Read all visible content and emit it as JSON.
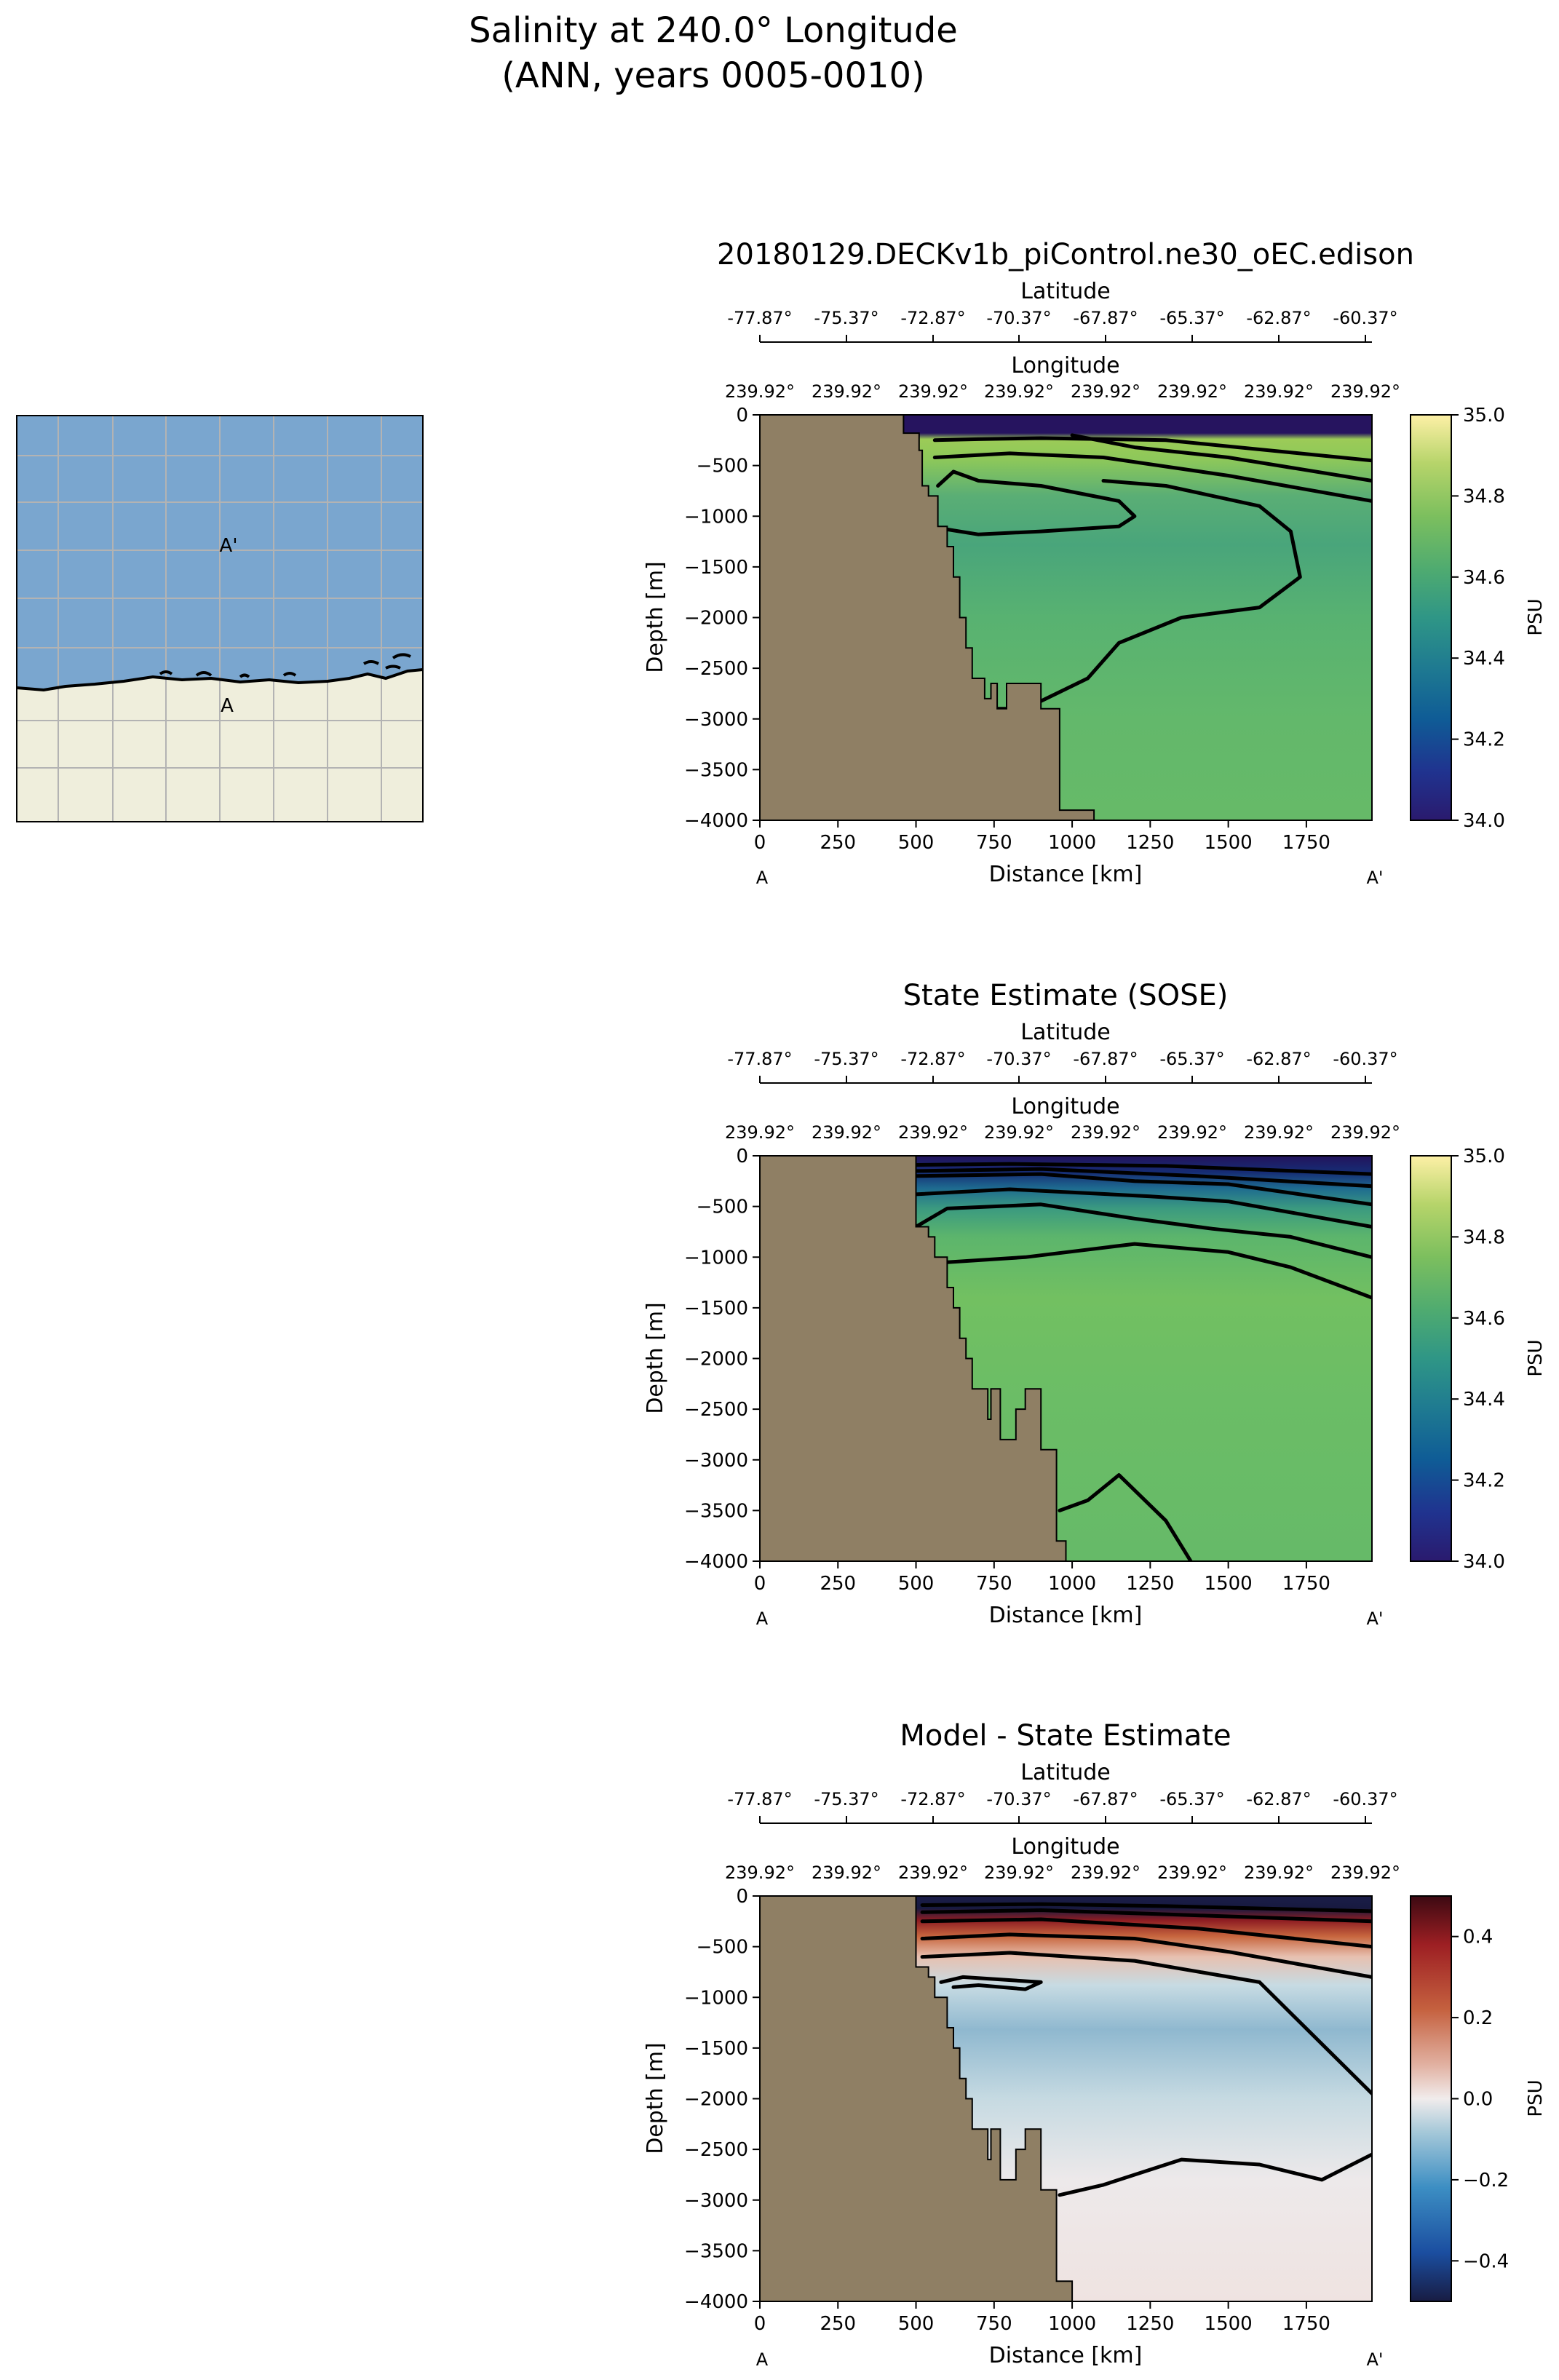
{
  "figure": {
    "title_line1": "Salinity at 240.0° Longitude",
    "title_line2": "(ANN, years 0005-0010)"
  },
  "inset_map": {
    "point_a": "A",
    "point_a_prime": "A'",
    "colors": {
      "ocean": "#7aa6cf",
      "land": "#efeedc",
      "grid": "#b3b3b3"
    }
  },
  "chart_data": [
    {
      "type": "heatmap",
      "title": "20180129.DECKv1b_piControl.ne30_oEC.edison",
      "xlabel": "Distance [km]",
      "ylabel": "Depth [m]",
      "xlim": [
        0,
        1960
      ],
      "ylim": [
        -4000,
        0
      ],
      "x_ticks": [
        0,
        250,
        500,
        750,
        1000,
        1250,
        1500,
        1750
      ],
      "y_ticks": [
        0,
        -500,
        -1000,
        -1500,
        -2000,
        -2500,
        -3000,
        -3500,
        -4000
      ],
      "x_tick_labels": [
        "0",
        "250",
        "500",
        "750",
        "1000",
        "1250",
        "1500",
        "1750"
      ],
      "y_tick_labels": [
        "0",
        "−500",
        "−1000",
        "−1500",
        "−2000",
        "−2500",
        "−3000",
        "−3500",
        "−4000"
      ],
      "latitude_axis": {
        "label": "Latitude",
        "ticks": [
          "-77.87°",
          "-75.37°",
          "-72.87°",
          "-70.37°",
          "-67.87°",
          "-65.37°",
          "-62.87°",
          "-60.37°"
        ]
      },
      "longitude_axis": {
        "label": "Longitude",
        "ticks": [
          "239.92°",
          "239.92°",
          "239.92°",
          "239.92°",
          "239.92°",
          "239.92°",
          "239.92°",
          "239.92°"
        ]
      },
      "section_start": "A",
      "section_end": "A'",
      "colorbar": {
        "label": "PSU",
        "range": [
          34.0,
          35.0
        ],
        "ticks": [
          "34.0",
          "34.2",
          "34.4",
          "34.6",
          "34.8",
          "35.0"
        ],
        "colormap": "haline"
      },
      "bathymetry": [
        [
          0,
          0
        ],
        [
          460,
          0
        ],
        [
          460,
          -180
        ],
        [
          510,
          -180
        ],
        [
          510,
          -350
        ],
        [
          520,
          -350
        ],
        [
          520,
          -700
        ],
        [
          540,
          -700
        ],
        [
          540,
          -800
        ],
        [
          570,
          -800
        ],
        [
          570,
          -1100
        ],
        [
          600,
          -1100
        ],
        [
          600,
          -1300
        ],
        [
          620,
          -1300
        ],
        [
          620,
          -1600
        ],
        [
          640,
          -1600
        ],
        [
          640,
          -2000
        ],
        [
          660,
          -2000
        ],
        [
          660,
          -2300
        ],
        [
          680,
          -2300
        ],
        [
          680,
          -2600
        ],
        [
          720,
          -2600
        ],
        [
          720,
          -2800
        ],
        [
          740,
          -2800
        ],
        [
          740,
          -2650
        ],
        [
          760,
          -2650
        ],
        [
          760,
          -2900
        ],
        [
          790,
          -2900
        ],
        [
          790,
          -2650
        ],
        [
          900,
          -2650
        ],
        [
          900,
          -2900
        ],
        [
          960,
          -2900
        ],
        [
          960,
          -3900
        ],
        [
          1070,
          -3900
        ],
        [
          1070,
          -4000
        ],
        [
          0,
          -4000
        ]
      ],
      "field_notes": "Fresh surface layer 34.0-34.1 above ~250 m; green 34.75 near surface; teal 34.65 core between 600 and 1700 m; 34.7 at depth",
      "contours": [
        {
          "level": 34.7,
          "points": [
            [
              560,
              -250
            ],
            [
              700,
              -240
            ],
            [
              900,
              -230
            ],
            [
              1300,
              -250
            ],
            [
              1960,
              -450
            ]
          ]
        },
        {
          "level": 34.7,
          "points": [
            [
              1000,
              -200
            ],
            [
              1200,
              -320
            ],
            [
              1500,
              -420
            ],
            [
              1960,
              -650
            ]
          ]
        },
        {
          "level": 34.7,
          "points": [
            [
              560,
              -420
            ],
            [
              800,
              -380
            ],
            [
              1100,
              -420
            ],
            [
              1500,
              -600
            ],
            [
              1960,
              -850
            ]
          ]
        },
        {
          "level": 34.65,
          "points": [
            [
              570,
              -700
            ],
            [
              620,
              -560
            ],
            [
              700,
              -650
            ],
            [
              900,
              -700
            ],
            [
              1150,
              -850
            ],
            [
              1200,
              -1000
            ],
            [
              1150,
              -1100
            ],
            [
              900,
              -1150
            ],
            [
              700,
              -1180
            ],
            [
              600,
              -1130
            ]
          ]
        },
        {
          "level": 34.66,
          "points": [
            [
              680,
              -2650
            ],
            [
              740,
              -2900
            ],
            [
              850,
              -2900
            ],
            [
              1050,
              -2600
            ],
            [
              1150,
              -2250
            ],
            [
              1350,
              -2000
            ],
            [
              1600,
              -1900
            ],
            [
              1730,
              -1600
            ],
            [
              1700,
              -1150
            ],
            [
              1600,
              -900
            ],
            [
              1300,
              -700
            ],
            [
              1100,
              -650
            ]
          ]
        }
      ]
    },
    {
      "type": "heatmap",
      "title": "State Estimate (SOSE)",
      "xlabel": "Distance [km]",
      "ylabel": "Depth [m]",
      "xlim": [
        0,
        1960
      ],
      "ylim": [
        -4000,
        0
      ],
      "x_ticks": [
        0,
        250,
        500,
        750,
        1000,
        1250,
        1500,
        1750
      ],
      "y_ticks": [
        0,
        -500,
        -1000,
        -1500,
        -2000,
        -2500,
        -3000,
        -3500,
        -4000
      ],
      "x_tick_labels": [
        "0",
        "250",
        "500",
        "750",
        "1000",
        "1250",
        "1500",
        "1750"
      ],
      "y_tick_labels": [
        "0",
        "−500",
        "−1000",
        "−1500",
        "−2000",
        "−2500",
        "−3000",
        "−3500",
        "−4000"
      ],
      "latitude_axis": {
        "label": "Latitude",
        "ticks": [
          "-77.87°",
          "-75.37°",
          "-72.87°",
          "-70.37°",
          "-67.87°",
          "-65.37°",
          "-62.87°",
          "-60.37°"
        ]
      },
      "longitude_axis": {
        "label": "Longitude",
        "ticks": [
          "239.92°",
          "239.92°",
          "239.92°",
          "239.92°",
          "239.92°",
          "239.92°",
          "239.92°",
          "239.92°"
        ]
      },
      "section_start": "A",
      "section_end": "A'",
      "colorbar": {
        "label": "PSU",
        "range": [
          34.0,
          35.0
        ],
        "ticks": [
          "34.0",
          "34.2",
          "34.4",
          "34.6",
          "34.8",
          "35.0"
        ],
        "colormap": "haline"
      },
      "bathymetry": [
        [
          0,
          0
        ],
        [
          500,
          0
        ],
        [
          500,
          -700
        ],
        [
          540,
          -700
        ],
        [
          540,
          -800
        ],
        [
          560,
          -800
        ],
        [
          560,
          -1000
        ],
        [
          600,
          -1000
        ],
        [
          600,
          -1300
        ],
        [
          620,
          -1300
        ],
        [
          620,
          -1500
        ],
        [
          640,
          -1500
        ],
        [
          640,
          -1800
        ],
        [
          660,
          -1800
        ],
        [
          660,
          -2000
        ],
        [
          680,
          -2000
        ],
        [
          680,
          -2300
        ],
        [
          730,
          -2300
        ],
        [
          730,
          -2600
        ],
        [
          740,
          -2600
        ],
        [
          740,
          -2300
        ],
        [
          770,
          -2300
        ],
        [
          770,
          -2800
        ],
        [
          820,
          -2800
        ],
        [
          820,
          -2500
        ],
        [
          850,
          -2500
        ],
        [
          850,
          -2300
        ],
        [
          900,
          -2300
        ],
        [
          900,
          -2900
        ],
        [
          950,
          -2900
        ],
        [
          950,
          -3800
        ],
        [
          980,
          -3800
        ],
        [
          980,
          -4000
        ],
        [
          0,
          -4000
        ]
      ],
      "contours": [
        {
          "level": 34.2,
          "points": [
            [
              500,
              -90
            ],
            [
              800,
              -80
            ],
            [
              1300,
              -100
            ],
            [
              1960,
              -180
            ]
          ]
        },
        {
          "level": 34.3,
          "points": [
            [
              500,
              -150
            ],
            [
              900,
              -130
            ],
            [
              1400,
              -200
            ],
            [
              1960,
              -300
            ]
          ]
        },
        {
          "level": 34.4,
          "points": [
            [
              500,
              -200
            ],
            [
              900,
              -180
            ],
            [
              1200,
              -250
            ],
            [
              1500,
              -280
            ],
            [
              1960,
              -480
            ]
          ]
        },
        {
          "level": 34.5,
          "points": [
            [
              500,
              -380
            ],
            [
              800,
              -330
            ],
            [
              1250,
              -400
            ],
            [
              1500,
              -450
            ],
            [
              1960,
              -700
            ]
          ]
        },
        {
          "level": 34.6,
          "points": [
            [
              500,
              -700
            ],
            [
              600,
              -520
            ],
            [
              900,
              -480
            ],
            [
              1200,
              -620
            ],
            [
              1450,
              -720
            ],
            [
              1700,
              -800
            ],
            [
              1960,
              -1000
            ]
          ]
        },
        {
          "level": 34.7,
          "points": [
            [
              600,
              -1050
            ],
            [
              850,
              -1000
            ],
            [
              1200,
              -870
            ],
            [
              1500,
              -950
            ],
            [
              1700,
              -1100
            ],
            [
              1960,
              -1400
            ]
          ]
        },
        {
          "level": 34.72,
          "points": [
            [
              960,
              -3500
            ],
            [
              1050,
              -3400
            ],
            [
              1150,
              -3150
            ],
            [
              1300,
              -3600
            ],
            [
              1380,
              -4000
            ]
          ]
        }
      ]
    },
    {
      "type": "heatmap",
      "title": "Model - State Estimate",
      "xlabel": "Distance [km]",
      "ylabel": "Depth [m]",
      "xlim": [
        0,
        1960
      ],
      "ylim": [
        -4000,
        0
      ],
      "x_ticks": [
        0,
        250,
        500,
        750,
        1000,
        1250,
        1500,
        1750
      ],
      "y_ticks": [
        0,
        -500,
        -1000,
        -1500,
        -2000,
        -2500,
        -3000,
        -3500,
        -4000
      ],
      "x_tick_labels": [
        "0",
        "250",
        "500",
        "750",
        "1000",
        "1250",
        "1500",
        "1750"
      ],
      "y_tick_labels": [
        "0",
        "−500",
        "−1000",
        "−1500",
        "−2000",
        "−2500",
        "−3000",
        "−3500",
        "−4000"
      ],
      "latitude_axis": {
        "label": "Latitude",
        "ticks": [
          "-77.87°",
          "-75.37°",
          "-72.87°",
          "-70.37°",
          "-67.87°",
          "-65.37°",
          "-62.87°",
          "-60.37°"
        ]
      },
      "longitude_axis": {
        "label": "Longitude",
        "ticks": [
          "239.92°",
          "239.92°",
          "239.92°",
          "239.92°",
          "239.92°",
          "239.92°",
          "239.92°",
          "239.92°"
        ]
      },
      "section_start": "A",
      "section_end": "A'",
      "colorbar": {
        "label": "PSU",
        "range": [
          -0.5,
          0.5
        ],
        "ticks": [
          "−0.4",
          "−0.2",
          "0.0",
          "0.2",
          "0.4"
        ],
        "tick_values": [
          -0.4,
          -0.2,
          0.0,
          0.2,
          0.4
        ],
        "colormap": "balance"
      },
      "bathymetry": [
        [
          0,
          0
        ],
        [
          500,
          0
        ],
        [
          500,
          -700
        ],
        [
          540,
          -700
        ],
        [
          540,
          -800
        ],
        [
          560,
          -800
        ],
        [
          560,
          -1000
        ],
        [
          600,
          -1000
        ],
        [
          600,
          -1300
        ],
        [
          620,
          -1300
        ],
        [
          620,
          -1500
        ],
        [
          640,
          -1500
        ],
        [
          640,
          -1800
        ],
        [
          660,
          -1800
        ],
        [
          660,
          -2000
        ],
        [
          680,
          -2000
        ],
        [
          680,
          -2300
        ],
        [
          730,
          -2300
        ],
        [
          730,
          -2600
        ],
        [
          740,
          -2600
        ],
        [
          740,
          -2300
        ],
        [
          770,
          -2300
        ],
        [
          770,
          -2800
        ],
        [
          820,
          -2800
        ],
        [
          820,
          -2500
        ],
        [
          850,
          -2500
        ],
        [
          850,
          -2300
        ],
        [
          900,
          -2300
        ],
        [
          900,
          -2900
        ],
        [
          950,
          -2900
        ],
        [
          950,
          -3800
        ],
        [
          1000,
          -3800
        ],
        [
          1000,
          -4000
        ],
        [
          0,
          -4000
        ]
      ],
      "contours": [
        {
          "level": -0.4,
          "points": [
            [
              520,
              -90
            ],
            [
              900,
              -80
            ],
            [
              1300,
              -100
            ],
            [
              1960,
              -150
            ]
          ]
        },
        {
          "level": 0.3,
          "points": [
            [
              520,
              -160
            ],
            [
              900,
              -140
            ],
            [
              1300,
              -180
            ],
            [
              1960,
              -250
            ]
          ]
        },
        {
          "level": 0.2,
          "points": [
            [
              520,
              -250
            ],
            [
              900,
              -230
            ],
            [
              1400,
              -320
            ],
            [
              1960,
              -500
            ]
          ]
        },
        {
          "level": 0.1,
          "points": [
            [
              520,
              -420
            ],
            [
              800,
              -380
            ],
            [
              1200,
              -420
            ],
            [
              1500,
              -550
            ],
            [
              1960,
              -800
            ]
          ]
        },
        {
          "level": 0.0,
          "points": [
            [
              520,
              -600
            ],
            [
              800,
              -560
            ],
            [
              1200,
              -640
            ],
            [
              1600,
              -850
            ],
            [
              1960,
              -1950
            ]
          ]
        },
        {
          "level": -0.1,
          "points": [
            [
              580,
              -850
            ],
            [
              650,
              -800
            ],
            [
              900,
              -850
            ],
            [
              850,
              -920
            ],
            [
              700,
              -880
            ],
            [
              620,
              -900
            ]
          ]
        },
        {
          "level": 0.0,
          "points": [
            [
              960,
              -2950
            ],
            [
              1100,
              -2850
            ],
            [
              1350,
              -2600
            ],
            [
              1600,
              -2650
            ],
            [
              1800,
              -2800
            ],
            [
              1960,
              -2550
            ]
          ]
        }
      ]
    }
  ]
}
